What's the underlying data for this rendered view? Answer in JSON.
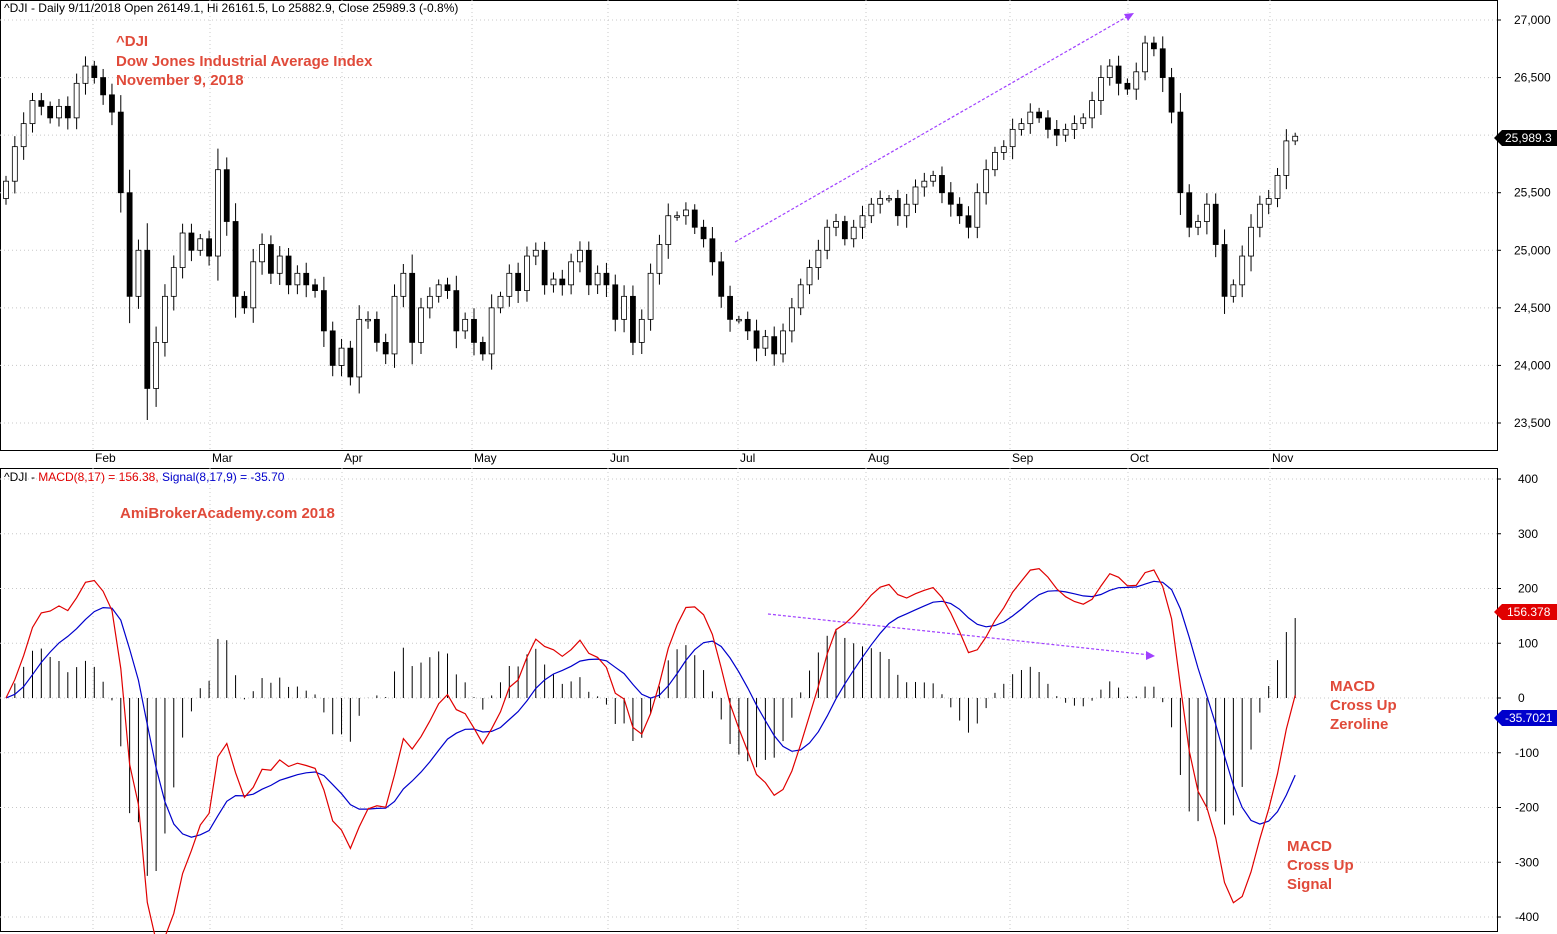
{
  "price_panel": {
    "header": "^DJI - Daily 9/11/2018 Open 26149.1, Hi 26161.5, Lo 25882.9, Close 25989.3 (-0.8%)",
    "notes": [
      "^DJI",
      "Dow Jones Industrial Average Index",
      "November 9, 2018"
    ],
    "last_price_label": "25,989.3"
  },
  "macd_panel": {
    "header": {
      "prefix": "^DJI - ",
      "macd_part": "MACD(8,17) = 156.38,",
      "signal_part": " Signal(8,17,9) = -35.70"
    },
    "watermark": "AmiBrokerAcademy.com  2018",
    "annotation_zeroline": [
      "MACD",
      "Cross Up",
      "Zeroline"
    ],
    "annotation_signal": [
      "MACD",
      "Cross Up",
      "Signal"
    ],
    "macd_label": "156.378",
    "signal_label": "-35.7021"
  },
  "colors": {
    "macd_line": "#e00000",
    "signal_line": "#0000cc",
    "trend_arrow": "#a040ff",
    "annotation_text": "#e04a3a",
    "grid": "#c8c8c8"
  },
  "chart_data": [
    {
      "type": "candlestick",
      "title": "^DJI - Daily",
      "months": [
        "Feb",
        "Mar",
        "Apr",
        "May",
        "Jun",
        "Jul",
        "Aug",
        "Sep",
        "Oct",
        "Nov"
      ],
      "y_ticks": [
        "27,000",
        "26,500",
        "26,000",
        "25,500",
        "25,000",
        "24,500",
        "24,000",
        "23,500"
      ],
      "ylim": [
        23300,
        27200
      ],
      "close": [
        25600,
        25900,
        26100,
        26300,
        26250,
        26150,
        26250,
        26150,
        26450,
        26600,
        26500,
        26350,
        26200,
        25500,
        24600,
        25000,
        23800,
        24200,
        24600,
        24850,
        25150,
        25000,
        25100,
        24950,
        25700,
        25250,
        24600,
        24500,
        24900,
        25050,
        24800,
        24950,
        24700,
        24800,
        24700,
        24650,
        24300,
        24000,
        24150,
        23900,
        24400,
        24400,
        24200,
        24100,
        24600,
        24800,
        24200,
        24500,
        24600,
        24700,
        24650,
        24300,
        24400,
        24200,
        24100,
        24500,
        24600,
        24800,
        24650,
        24950,
        25000,
        24700,
        24750,
        24700,
        24900,
        25000,
        24700,
        24800,
        24700,
        24400,
        24600,
        24200,
        24400,
        24800,
        25050,
        25300,
        25300,
        25350,
        25200,
        25100,
        24900,
        24600,
        24400,
        24400,
        24300,
        24150,
        24250,
        24100,
        24300,
        24500,
        24700,
        24850,
        25000,
        25200,
        25250,
        25100,
        25200,
        25300,
        25400,
        25450,
        25450,
        25300,
        25400,
        25550,
        25600,
        25650,
        25500,
        25400,
        25300,
        25200,
        25500,
        25700,
        25850,
        25900,
        26050,
        26100,
        26200,
        26150,
        26050,
        26000,
        26050,
        26100,
        26150,
        26300,
        26500,
        26600,
        26450,
        26400,
        26550,
        26800,
        26750,
        26500,
        26200,
        25500,
        25200,
        25250,
        25400,
        25050,
        24600,
        24700,
        24950,
        25200,
        25400,
        25450,
        25650,
        25950,
        25990
      ],
      "macd_ylim": [
        -420,
        420
      ],
      "macd_y_ticks": [
        "400",
        "300",
        "200",
        "100",
        "0",
        "-100",
        "-200",
        "-300",
        "-400"
      ],
      "macd_last": 156.38,
      "signal_last": -35.7
    }
  ]
}
